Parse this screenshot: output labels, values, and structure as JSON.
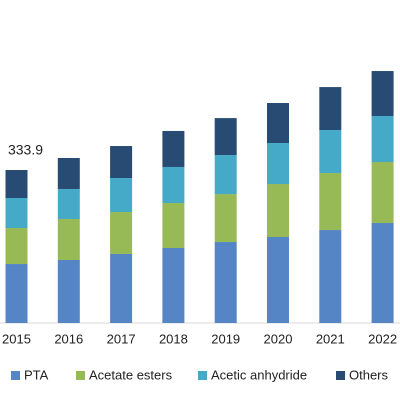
{
  "chart_data": {
    "type": "stacked_bar",
    "categories": [
      "2015",
      "2016",
      "2017",
      "2018",
      "2019",
      "2020",
      "2021",
      "2022"
    ],
    "series": [
      {
        "name": "PTA",
        "color": "#5585c5",
        "values": [
          128.7,
          137.5,
          150.6,
          163.7,
          176.7,
          187.7,
          202.9,
          218.2
        ]
      },
      {
        "name": "Acetate esters",
        "color": "#97b956",
        "values": [
          78.6,
          89.5,
          91.6,
          98.2,
          104.7,
          115.6,
          124.4,
          133.1
        ]
      },
      {
        "name": "Acetic anhydride",
        "color": "#45aac8",
        "values": [
          65.5,
          65.5,
          74.2,
          78.6,
          85.1,
          89.5,
          93.8,
          100.4
        ]
      },
      {
        "name": "Others",
        "color": "#274b72",
        "values": [
          61.1,
          67.6,
          69.8,
          78.6,
          80.7,
          87.3,
          93.8,
          98.2
        ]
      }
    ],
    "data_label": 333.9,
    "legend": "bottom"
  }
}
